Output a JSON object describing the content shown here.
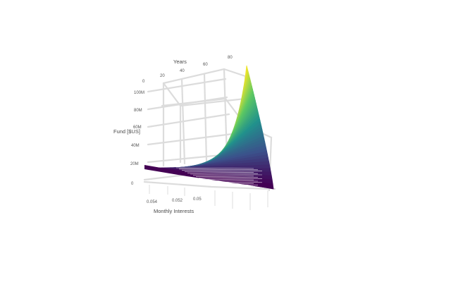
{
  "chart_data": {
    "type": "surface",
    "title": "",
    "axes": {
      "x": {
        "label": "Monthly Interests",
        "ticks": [
          "0.054",
          "0.052",
          "0.05"
        ]
      },
      "y": {
        "label": "Years",
        "ticks": [
          "0",
          "20",
          "40",
          "60",
          "80"
        ]
      },
      "z": {
        "label": "Fund [$US]",
        "ticks": [
          "0",
          "20M",
          "40M",
          "60M",
          "80M",
          "100M"
        ]
      }
    },
    "zlim": [
      0,
      110
    ],
    "z_unit": "M",
    "colorscale": [
      "#440154",
      "#3b528b",
      "#21918c",
      "#5ec962",
      "#fde725"
    ],
    "surface_peak": {
      "years": 80,
      "monthly_interest": 0.05,
      "fund": 105
    },
    "surface_edges": [
      {
        "monthly_interest": 0.054,
        "years": [
          0,
          80
        ],
        "fund_range": [
          0,
          18
        ]
      },
      {
        "years": 80,
        "monthly_interest": [
          0.054,
          0.05
        ],
        "fund_range": [
          18,
          105
        ]
      }
    ],
    "grid": true
  }
}
